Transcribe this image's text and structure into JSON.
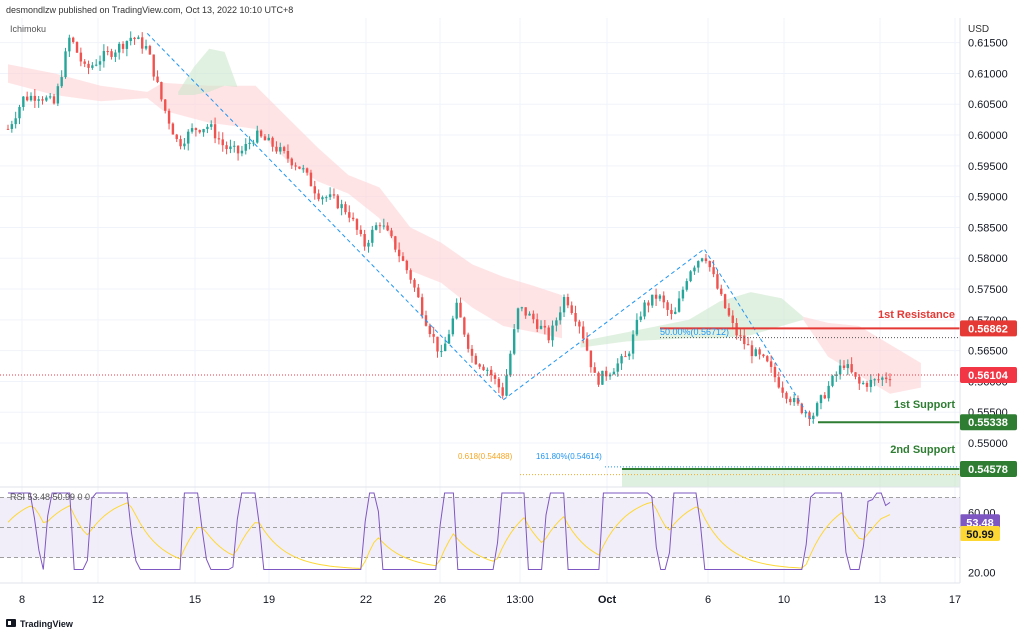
{
  "header": {
    "publisher": "desmondlzw published on TradingView.com, Oct 13, 2022 10:10 UTC+8",
    "indicator": "Ichimoku",
    "currency": "USD",
    "footer_brand": "TradingView",
    "logo_name": "tradingview-logo-icon"
  },
  "chart_data": {
    "type": "candlestick",
    "price_axis": {
      "ticks": [
        "0.61500",
        "0.61000",
        "0.60500",
        "0.60000",
        "0.59500",
        "0.59000",
        "0.58500",
        "0.58000",
        "0.57500",
        "0.57000",
        "0.56500",
        "0.56000",
        "0.55500",
        "0.55000"
      ],
      "range": [
        0.544,
        0.619
      ]
    },
    "time_axis": {
      "labels": [
        "8",
        "12",
        "15",
        "19",
        "22",
        "26",
        "13:00",
        "Oct",
        "6",
        "10",
        "13",
        "17"
      ],
      "bold_label": "Oct"
    },
    "price_path": [
      [
        0,
        0.601
      ],
      [
        1,
        0.606
      ],
      [
        2,
        0.6065
      ],
      [
        3,
        0.605
      ],
      [
        4,
        0.616
      ],
      [
        5,
        0.6105
      ],
      [
        6,
        0.6125
      ],
      [
        7,
        0.614
      ],
      [
        8,
        0.616
      ],
      [
        9,
        0.614
      ],
      [
        10,
        0.605
      ],
      [
        11,
        0.5985
      ],
      [
        12,
        0.601
      ],
      [
        13,
        0.6015
      ],
      [
        14,
        0.598
      ],
      [
        15,
        0.597
      ],
      [
        16,
        0.6
      ],
      [
        17,
        0.5985
      ],
      [
        18,
        0.5965
      ],
      [
        19,
        0.5945
      ],
      [
        20,
        0.5905
      ],
      [
        21,
        0.5895
      ],
      [
        22,
        0.5875
      ],
      [
        23,
        0.582
      ],
      [
        24,
        0.586
      ],
      [
        25,
        0.582
      ],
      [
        26,
        0.577
      ],
      [
        27,
        0.57
      ],
      [
        28,
        0.564
      ],
      [
        29,
        0.572
      ],
      [
        30,
        0.564
      ],
      [
        31,
        0.562
      ],
      [
        32,
        0.558
      ],
      [
        33,
        0.572
      ],
      [
        34,
        0.57
      ],
      [
        35,
        0.567
      ],
      [
        36,
        0.574
      ],
      [
        37,
        0.569
      ],
      [
        38,
        0.56
      ],
      [
        39,
        0.562
      ],
      [
        40,
        0.564
      ],
      [
        41,
        0.572
      ],
      [
        42,
        0.574
      ],
      [
        43,
        0.57
      ],
      [
        44,
        0.578
      ],
      [
        45,
        0.581
      ],
      [
        46,
        0.574
      ],
      [
        47,
        0.568
      ],
      [
        48,
        0.565
      ],
      [
        49,
        0.563
      ],
      [
        50,
        0.559
      ],
      [
        51,
        0.556
      ],
      [
        52,
        0.5545
      ],
      [
        53,
        0.559
      ],
      [
        54,
        0.563
      ],
      [
        55,
        0.5595
      ],
      [
        56,
        0.56
      ],
      [
        57,
        0.561
      ]
    ],
    "cloud_red": [
      [
        0,
        0.6115,
        0.6085
      ],
      [
        3,
        0.61,
        0.6065
      ],
      [
        6,
        0.608,
        0.6055
      ],
      [
        9,
        0.607,
        0.606
      ],
      [
        10,
        0.6085,
        0.604
      ],
      [
        13,
        0.608,
        0.602
      ],
      [
        16,
        0.608,
        0.601
      ],
      [
        18,
        0.603,
        0.596
      ],
      [
        20,
        0.598,
        0.5925
      ],
      [
        22,
        0.5935,
        0.5905
      ],
      [
        24,
        0.5915,
        0.5865
      ],
      [
        26,
        0.585,
        0.578
      ],
      [
        28,
        0.5825,
        0.576
      ],
      [
        30,
        0.579,
        0.572
      ],
      [
        32,
        0.577,
        0.569
      ],
      [
        34,
        0.5755,
        0.568
      ],
      [
        35.8,
        0.574,
        0.567
      ]
    ],
    "cloud_green_1": [
      [
        11,
        0.607,
        0.6065
      ],
      [
        12,
        0.611,
        0.6065
      ],
      [
        13,
        0.614,
        0.607
      ],
      [
        14,
        0.6135,
        0.608
      ],
      [
        14.8,
        0.608,
        0.6078
      ]
    ],
    "cloud_green_2": [
      [
        37,
        0.5665,
        0.5655
      ],
      [
        40,
        0.568,
        0.5665
      ],
      [
        44,
        0.57,
        0.567
      ],
      [
        46,
        0.573,
        0.567
      ],
      [
        48,
        0.5745,
        0.5675
      ],
      [
        50,
        0.5735,
        0.569
      ],
      [
        51.4,
        0.5705,
        0.57
      ]
    ],
    "cloud_red_2": [
      [
        51.4,
        0.5705,
        0.57
      ],
      [
        53,
        0.5695,
        0.564
      ],
      [
        55,
        0.569,
        0.561
      ],
      [
        57,
        0.566,
        0.558
      ],
      [
        59,
        0.563,
        0.559
      ]
    ],
    "zigzag": [
      [
        9,
        0.6165
      ],
      [
        32,
        0.557
      ],
      [
        45,
        0.5815
      ],
      [
        52,
        0.5534
      ]
    ],
    "levels": [
      {
        "label": "1st Resistance",
        "value": "0.56862",
        "color": "#e53935"
      },
      {
        "label": "1st Support",
        "value": "0.55338",
        "color": "#2e7d32"
      },
      {
        "label": "2nd Support",
        "value": "0.54578",
        "color": "#2e7d32"
      }
    ],
    "current_price": {
      "value": "0.56104",
      "color": "#f23645"
    },
    "fib_labels": {
      "mid": "50.00%(0.56712)",
      "ext_ratio": "0.618(0.54488)",
      "ext_pct": "161.80%(0.54614)"
    },
    "rsi": {
      "legend": "RSI 53.48 50.99 0 0",
      "value": "53.48",
      "ma": "50.99",
      "value_color": "#7e57c2",
      "ma_color": "#fdd835",
      "ticks": [
        "60.00",
        "20.00"
      ],
      "range": [
        15,
        75
      ],
      "upper": 70,
      "mid": 50,
      "lower": 30
    }
  }
}
